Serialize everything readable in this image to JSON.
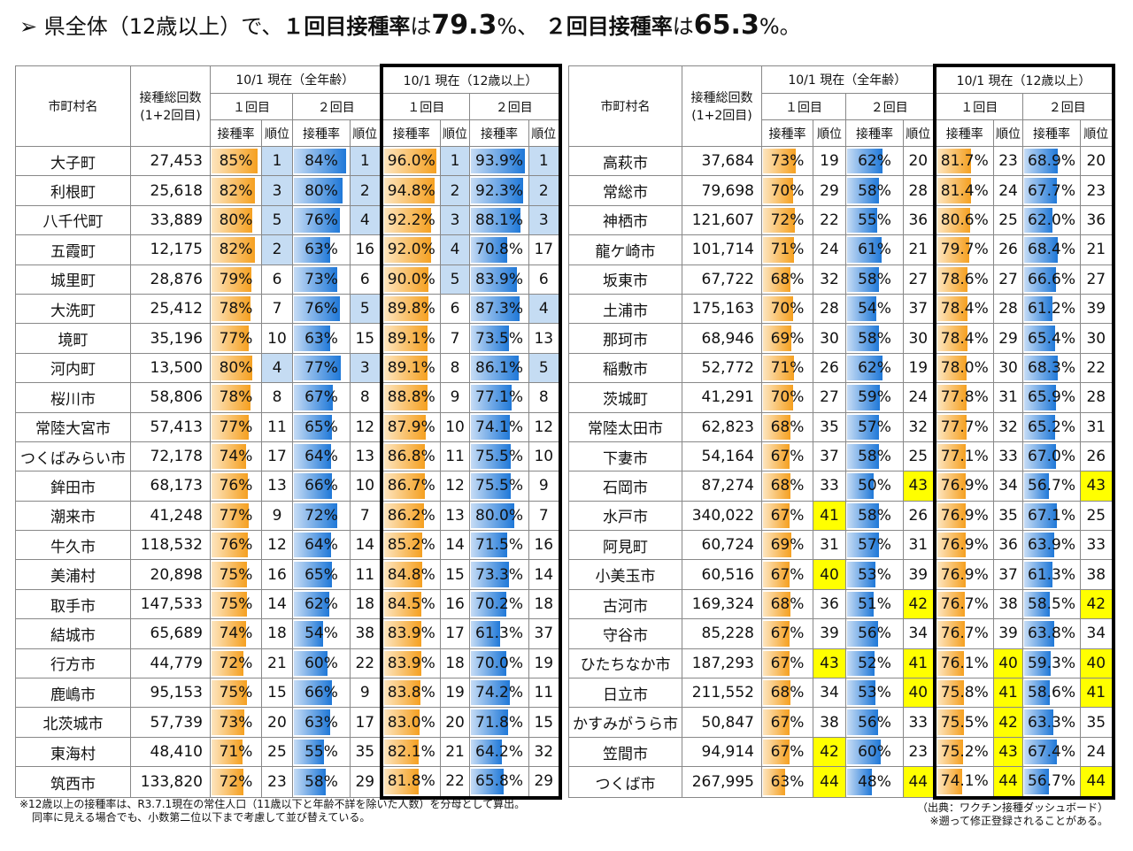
{
  "title": {
    "parts": [
      {
        "text": "➢  県全体（12歳以上）で、",
        "style": "normal"
      },
      {
        "text": "１回目接種率",
        "style": "bold"
      },
      {
        "text": "は",
        "style": "normal"
      },
      {
        "text": "79.3",
        "style": "big"
      },
      {
        "text": "%、 ",
        "style": "normal"
      },
      {
        "text": "２回目接種率",
        "style": "bold"
      },
      {
        "text": "は",
        "style": "normal"
      },
      {
        "text": "65.3",
        "style": "big"
      },
      {
        "text": "%。",
        "style": "normal"
      }
    ]
  },
  "headers": {
    "name": "市町村名",
    "total_1": "接種総回数",
    "total_2": "(1+2回目)",
    "all_ages": "10/1 現在（全年齢）",
    "age12": "10/1 現在（12歳以上）",
    "dose1": "１回目",
    "dose2": "２回目",
    "rate": "接種率",
    "rank": "順位"
  },
  "tables": [
    {
      "rows": [
        [
          "大子町",
          "27,453",
          "85%",
          1,
          "84%",
          1,
          "96.0%",
          1,
          "93.9%",
          1
        ],
        [
          "利根町",
          "25,618",
          "82%",
          3,
          "80%",
          2,
          "94.8%",
          2,
          "92.3%",
          2
        ],
        [
          "八千代町",
          "33,889",
          "80%",
          5,
          "76%",
          4,
          "92.2%",
          3,
          "88.1%",
          3
        ],
        [
          "五霞町",
          "12,175",
          "82%",
          2,
          "63%",
          16,
          "92.0%",
          4,
          "70.8%",
          17
        ],
        [
          "城里町",
          "28,876",
          "79%",
          6,
          "73%",
          6,
          "90.0%",
          5,
          "83.9%",
          6
        ],
        [
          "大洗町",
          "25,412",
          "78%",
          7,
          "76%",
          5,
          "89.8%",
          6,
          "87.3%",
          4
        ],
        [
          "境町",
          "35,196",
          "77%",
          10,
          "63%",
          15,
          "89.1%",
          7,
          "73.5%",
          13
        ],
        [
          "河内町",
          "13,500",
          "80%",
          4,
          "77%",
          3,
          "89.1%",
          8,
          "86.1%",
          5
        ],
        [
          "桜川市",
          "58,806",
          "78%",
          8,
          "67%",
          8,
          "88.8%",
          9,
          "77.1%",
          8
        ],
        [
          "常陸大宮市",
          "57,413",
          "77%",
          11,
          "65%",
          12,
          "87.9%",
          10,
          "74.1%",
          12
        ],
        [
          "つくばみらい市",
          "72,178",
          "74%",
          17,
          "64%",
          13,
          "86.8%",
          11,
          "75.5%",
          10
        ],
        [
          "鉾田市",
          "68,173",
          "76%",
          13,
          "66%",
          10,
          "86.7%",
          12,
          "75.5%",
          9
        ],
        [
          "潮来市",
          "41,248",
          "77%",
          9,
          "72%",
          7,
          "86.2%",
          13,
          "80.0%",
          7
        ],
        [
          "牛久市",
          "118,532",
          "76%",
          12,
          "64%",
          14,
          "85.2%",
          14,
          "71.5%",
          16
        ],
        [
          "美浦村",
          "20,898",
          "75%",
          16,
          "65%",
          11,
          "84.8%",
          15,
          "73.3%",
          14
        ],
        [
          "取手市",
          "147,533",
          "75%",
          14,
          "62%",
          18,
          "84.5%",
          16,
          "70.2%",
          18
        ],
        [
          "結城市",
          "65,689",
          "74%",
          18,
          "54%",
          38,
          "83.9%",
          17,
          "61.3%",
          37
        ],
        [
          "行方市",
          "44,779",
          "72%",
          21,
          "60%",
          22,
          "83.9%",
          18,
          "70.0%",
          19
        ],
        [
          "鹿嶋市",
          "95,153",
          "75%",
          15,
          "66%",
          9,
          "83.8%",
          19,
          "74.2%",
          11
        ],
        [
          "北茨城市",
          "57,739",
          "73%",
          20,
          "63%",
          17,
          "83.0%",
          20,
          "71.8%",
          15
        ],
        [
          "東海村",
          "48,410",
          "71%",
          25,
          "55%",
          35,
          "82.1%",
          21,
          "64.2%",
          32
        ],
        [
          "筑西市",
          "133,820",
          "72%",
          23,
          "58%",
          29,
          "81.8%",
          22,
          "65.8%",
          29
        ]
      ]
    },
    {
      "rows": [
        [
          "高萩市",
          "37,684",
          "73%",
          19,
          "62%",
          20,
          "81.7%",
          23,
          "68.9%",
          20
        ],
        [
          "常総市",
          "79,698",
          "70%",
          29,
          "58%",
          28,
          "81.4%",
          24,
          "67.7%",
          23
        ],
        [
          "神栖市",
          "121,607",
          "72%",
          22,
          "55%",
          36,
          "80.6%",
          25,
          "62.0%",
          36
        ],
        [
          "龍ケ崎市",
          "101,714",
          "71%",
          24,
          "61%",
          21,
          "79.7%",
          26,
          "68.4%",
          21
        ],
        [
          "坂東市",
          "67,722",
          "68%",
          32,
          "58%",
          27,
          "78.6%",
          27,
          "66.6%",
          27
        ],
        [
          "土浦市",
          "175,163",
          "70%",
          28,
          "54%",
          37,
          "78.4%",
          28,
          "61.2%",
          39
        ],
        [
          "那珂市",
          "68,946",
          "69%",
          30,
          "58%",
          30,
          "78.4%",
          29,
          "65.4%",
          30
        ],
        [
          "稲敷市",
          "52,772",
          "71%",
          26,
          "62%",
          19,
          "78.0%",
          30,
          "68.3%",
          22
        ],
        [
          "茨城町",
          "41,291",
          "70%",
          27,
          "59%",
          24,
          "77.8%",
          31,
          "65.9%",
          28
        ],
        [
          "常陸太田市",
          "62,823",
          "68%",
          35,
          "57%",
          32,
          "77.7%",
          32,
          "65.2%",
          31
        ],
        [
          "下妻市",
          "54,164",
          "67%",
          37,
          "58%",
          25,
          "77.1%",
          33,
          "67.0%",
          26
        ],
        [
          "石岡市",
          "87,274",
          "68%",
          33,
          "50%",
          43,
          "76.9%",
          34,
          "56.7%",
          43
        ],
        [
          "水戸市",
          "340,022",
          "67%",
          41,
          "58%",
          26,
          "76.9%",
          35,
          "67.1%",
          25
        ],
        [
          "阿見町",
          "60,724",
          "69%",
          31,
          "57%",
          31,
          "76.9%",
          36,
          "63.9%",
          33
        ],
        [
          "小美玉市",
          "60,516",
          "67%",
          40,
          "53%",
          39,
          "76.9%",
          37,
          "61.3%",
          38
        ],
        [
          "古河市",
          "169,324",
          "68%",
          36,
          "51%",
          42,
          "76.7%",
          38,
          "58.5%",
          42
        ],
        [
          "守谷市",
          "85,228",
          "67%",
          39,
          "56%",
          34,
          "76.7%",
          39,
          "63.8%",
          34
        ],
        [
          "ひたちなか市",
          "187,293",
          "67%",
          43,
          "52%",
          41,
          "76.1%",
          40,
          "59.3%",
          40
        ],
        [
          "日立市",
          "211,552",
          "68%",
          34,
          "53%",
          40,
          "75.8%",
          41,
          "58.6%",
          41
        ],
        [
          "かすみがうら市",
          "50,847",
          "67%",
          38,
          "56%",
          33,
          "75.5%",
          42,
          "63.3%",
          35
        ],
        [
          "笠間市",
          "94,914",
          "67%",
          42,
          "60%",
          23,
          "75.2%",
          43,
          "67.4%",
          24
        ],
        [
          "つくば市",
          "267,995",
          "63%",
          44,
          "48%",
          44,
          "74.1%",
          44,
          "56.7%",
          44
        ]
      ]
    }
  ],
  "footnotes": {
    "left": [
      "※12歳以上の接種率は、R3.7.1現在の常住人口（11歳以下と年齢不詳を除いた人数）を分母として算出。",
      "同率に見える場合でも、小数第二位以下まで考慮して並び替えている。"
    ],
    "right": [
      "（出典：ワクチン接種ダッシュボード）",
      "※遡って修正登録されることがある。"
    ]
  }
}
